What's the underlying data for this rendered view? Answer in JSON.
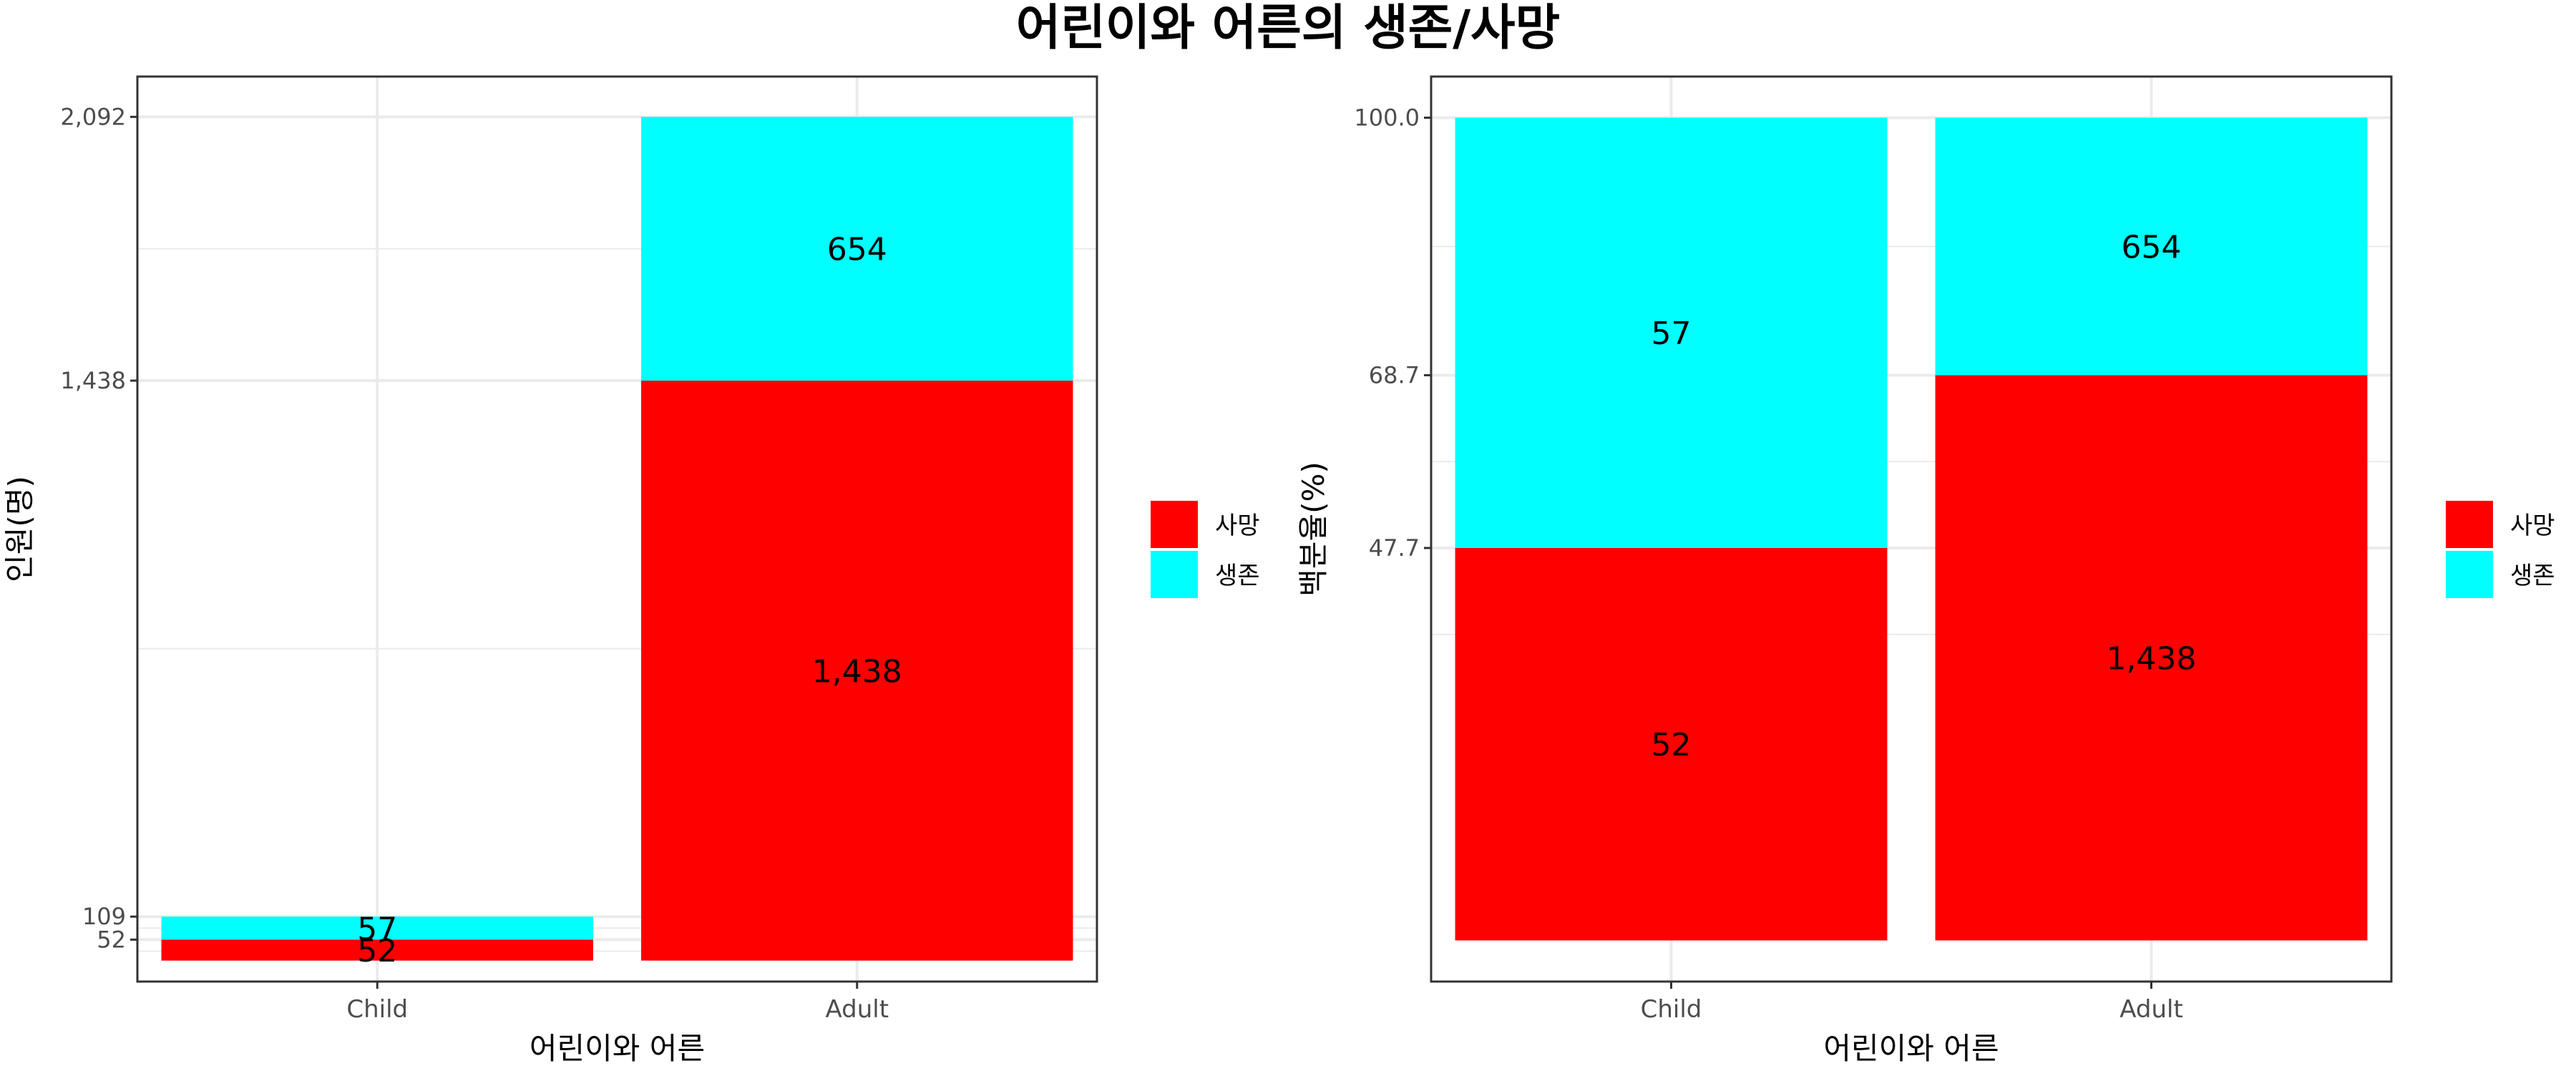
{
  "title": "어린이와 어른의 생존/사망",
  "colors": {
    "death": "#FF0000",
    "survival": "#00FFFF",
    "grid": "#EBEBEB",
    "frame": "#333333",
    "text": "#000000",
    "axis_text": "#4D4D4D"
  },
  "legend": {
    "items": [
      {
        "label": "사망",
        "color": "#FF0000"
      },
      {
        "label": "생존",
        "color": "#00FFFF"
      }
    ],
    "placement": "right"
  },
  "chart_data": [
    {
      "type": "bar",
      "stacked": true,
      "title": "",
      "xlabel": "어린이와 어른",
      "ylabel": "인원(명)",
      "categories": [
        "Child",
        "Adult"
      ],
      "ylim": [
        -52,
        2192
      ],
      "yticks": [
        52,
        109,
        1438,
        2092
      ],
      "ytick_labels": [
        "52",
        "109",
        "1,438",
        "2,092"
      ],
      "series": [
        {
          "name": "사망",
          "values": [
            52,
            1438
          ],
          "labels": [
            "52",
            "1,438"
          ]
        },
        {
          "name": "생존",
          "values": [
            57,
            654
          ],
          "labels": [
            "57",
            "654"
          ]
        }
      ],
      "grid": true
    },
    {
      "type": "bar",
      "stacked": true,
      "title": "",
      "xlabel": "어린이와 어른",
      "ylabel": "백분율(%)",
      "categories": [
        "Child",
        "Adult"
      ],
      "ylim": [
        -5,
        105
      ],
      "yticks": [
        47.7,
        68.7,
        100.0
      ],
      "ytick_labels": [
        "47.7",
        "68.7",
        "100.0"
      ],
      "series": [
        {
          "name": "사망",
          "values": [
            47.7,
            68.7
          ],
          "labels": [
            "52",
            "1,438"
          ]
        },
        {
          "name": "생존",
          "values": [
            52.3,
            31.3
          ],
          "labels": [
            "57",
            "654"
          ]
        }
      ],
      "grid": true
    }
  ]
}
